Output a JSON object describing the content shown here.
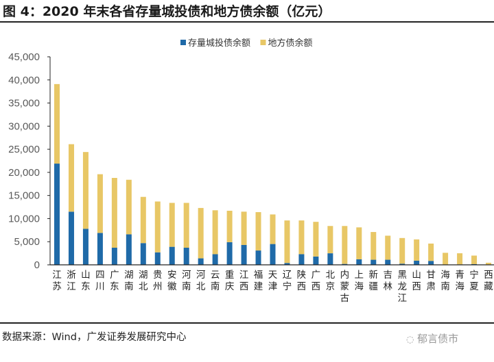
{
  "title": "图 4：2020 年末各省存量城投债和地方债余额（亿元）",
  "source": "数据来源：Wind，广发证券发展研究中心",
  "watermark": "郁言债市",
  "chart_data": {
    "type": "bar",
    "stacked": true,
    "title": "2020 年末各省存量城投债和地方债余额（亿元）",
    "xlabel": "",
    "ylabel": "",
    "ylim": [
      0,
      45000
    ],
    "yticks": [
      0,
      5000,
      10000,
      15000,
      20000,
      25000,
      30000,
      35000,
      40000,
      45000
    ],
    "ytick_labels": [
      "0",
      "5,000",
      "10,000",
      "15,000",
      "20,000",
      "25,000",
      "30,000",
      "35,000",
      "40,000",
      "45,000"
    ],
    "legend_position": "top-center",
    "grid": false,
    "categories": [
      "江苏",
      "浙江",
      "山东",
      "四川",
      "广东",
      "湖南",
      "湖北",
      "贵州",
      "安徽",
      "河南",
      "河北",
      "云南",
      "重庆",
      "江西",
      "福建",
      "天津",
      "辽宁",
      "陕西",
      "广西",
      "北京",
      "内蒙古",
      "上海",
      "新疆",
      "吉林",
      "黑龙江",
      "山西",
      "甘肃",
      "海南",
      "青海",
      "宁夏",
      "西藏"
    ],
    "series": [
      {
        "name": "存量城投债余额",
        "color": "#1f6aa8",
        "values": [
          21900,
          11500,
          7800,
          6900,
          3700,
          6600,
          4700,
          2700,
          3900,
          3700,
          1400,
          2300,
          4900,
          4300,
          3100,
          4500,
          400,
          2300,
          1800,
          2500,
          200,
          1200,
          1100,
          1100,
          250,
          900,
          850,
          50,
          100,
          150,
          0
        ]
      },
      {
        "name": "地方债余额",
        "color": "#e8c766",
        "values": [
          17200,
          14600,
          16600,
          12700,
          15100,
          11800,
          10000,
          11000,
          9500,
          9700,
          10900,
          9500,
          6800,
          7200,
          8300,
          6400,
          9200,
          7300,
          7500,
          5900,
          8200,
          6900,
          6000,
          5200,
          5550,
          4600,
          3750,
          2550,
          2400,
          1850,
          450
        ]
      }
    ]
  }
}
